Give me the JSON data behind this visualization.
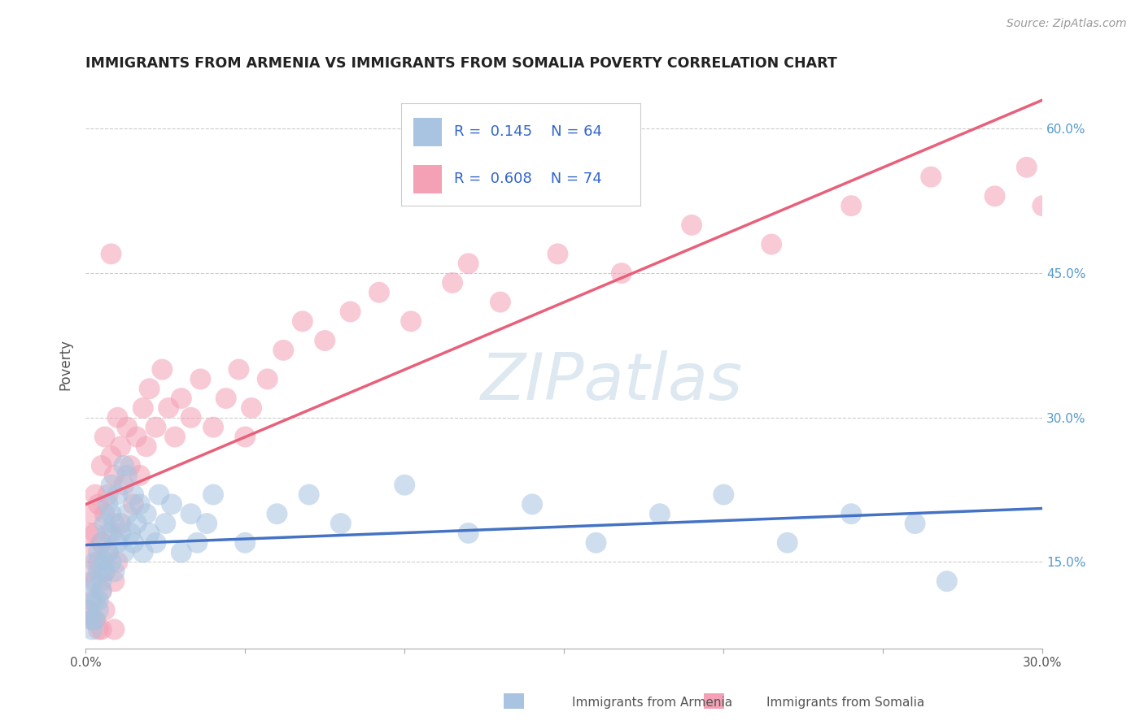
{
  "title": "IMMIGRANTS FROM ARMENIA VS IMMIGRANTS FROM SOMALIA POVERTY CORRELATION CHART",
  "source": "Source: ZipAtlas.com",
  "ylabel": "Poverty",
  "xlim": [
    0.0,
    0.3
  ],
  "ylim": [
    0.06,
    0.65
  ],
  "xticks": [
    0.0,
    0.05,
    0.1,
    0.15,
    0.2,
    0.25,
    0.3
  ],
  "xtick_labels": [
    "0.0%",
    "",
    "",
    "",
    "",
    "",
    "30.0%"
  ],
  "yticks": [
    0.15,
    0.3,
    0.45,
    0.6
  ],
  "ytick_labels": [
    "15.0%",
    "30.0%",
    "45.0%",
    "60.0%"
  ],
  "R_armenia": 0.145,
  "N_armenia": 64,
  "R_somalia": 0.608,
  "N_somalia": 74,
  "armenia_color": "#a8c4e0",
  "somalia_color": "#f4a0b5",
  "armenia_line_color": "#4472c4",
  "somalia_line_color": "#e8607a",
  "watermark": "ZIPatlas",
  "watermark_color": "#dde8f0",
  "background_color": "#ffffff",
  "grid_color": "#cccccc",
  "title_color": "#222222",
  "title_fontsize": 12.5,
  "legend_text_color": "#3366cc",
  "armenia_scatter_x": [
    0.001,
    0.001,
    0.002,
    0.002,
    0.002,
    0.003,
    0.003,
    0.003,
    0.004,
    0.004,
    0.004,
    0.004,
    0.005,
    0.005,
    0.005,
    0.006,
    0.006,
    0.006,
    0.007,
    0.007,
    0.007,
    0.008,
    0.008,
    0.008,
    0.009,
    0.009,
    0.01,
    0.01,
    0.011,
    0.012,
    0.012,
    0.013,
    0.013,
    0.014,
    0.015,
    0.015,
    0.016,
    0.017,
    0.018,
    0.019,
    0.02,
    0.022,
    0.023,
    0.025,
    0.027,
    0.03,
    0.033,
    0.035,
    0.038,
    0.04,
    0.05,
    0.06,
    0.07,
    0.08,
    0.1,
    0.12,
    0.14,
    0.16,
    0.18,
    0.2,
    0.22,
    0.24,
    0.26,
    0.27
  ],
  "armenia_scatter_y": [
    0.12,
    0.1,
    0.08,
    0.13,
    0.09,
    0.11,
    0.15,
    0.09,
    0.14,
    0.11,
    0.16,
    0.1,
    0.13,
    0.17,
    0.12,
    0.15,
    0.19,
    0.14,
    0.18,
    0.21,
    0.16,
    0.2,
    0.15,
    0.23,
    0.19,
    0.14,
    0.22,
    0.17,
    0.18,
    0.25,
    0.16,
    0.2,
    0.24,
    0.18,
    0.22,
    0.17,
    0.19,
    0.21,
    0.16,
    0.2,
    0.18,
    0.17,
    0.22,
    0.19,
    0.21,
    0.16,
    0.2,
    0.17,
    0.19,
    0.22,
    0.17,
    0.2,
    0.22,
    0.19,
    0.23,
    0.18,
    0.21,
    0.17,
    0.2,
    0.22,
    0.17,
    0.2,
    0.19,
    0.13
  ],
  "somalia_scatter_x": [
    0.001,
    0.001,
    0.001,
    0.002,
    0.002,
    0.002,
    0.003,
    0.003,
    0.003,
    0.004,
    0.004,
    0.005,
    0.005,
    0.005,
    0.006,
    0.006,
    0.006,
    0.007,
    0.007,
    0.008,
    0.008,
    0.009,
    0.009,
    0.01,
    0.01,
    0.011,
    0.011,
    0.012,
    0.013,
    0.014,
    0.015,
    0.016,
    0.017,
    0.018,
    0.019,
    0.02,
    0.022,
    0.024,
    0.026,
    0.028,
    0.03,
    0.033,
    0.036,
    0.04,
    0.044,
    0.048,
    0.052,
    0.057,
    0.062,
    0.068,
    0.075,
    0.083,
    0.092,
    0.102,
    0.115,
    0.13,
    0.148,
    0.168,
    0.19,
    0.215,
    0.24,
    0.265,
    0.285,
    0.295,
    0.3,
    0.008,
    0.05,
    0.12,
    0.005,
    0.003,
    0.004,
    0.006,
    0.002,
    0.009
  ],
  "somalia_scatter_y": [
    0.1,
    0.14,
    0.18,
    0.11,
    0.16,
    0.2,
    0.13,
    0.18,
    0.22,
    0.15,
    0.21,
    0.12,
    0.17,
    0.25,
    0.14,
    0.2,
    0.28,
    0.16,
    0.22,
    0.18,
    0.26,
    0.13,
    0.24,
    0.15,
    0.3,
    0.19,
    0.27,
    0.23,
    0.29,
    0.25,
    0.21,
    0.28,
    0.24,
    0.31,
    0.27,
    0.33,
    0.29,
    0.35,
    0.31,
    0.28,
    0.32,
    0.3,
    0.34,
    0.29,
    0.32,
    0.35,
    0.31,
    0.34,
    0.37,
    0.4,
    0.38,
    0.41,
    0.43,
    0.4,
    0.44,
    0.42,
    0.47,
    0.45,
    0.5,
    0.48,
    0.52,
    0.55,
    0.53,
    0.56,
    0.52,
    0.47,
    0.28,
    0.46,
    0.08,
    0.09,
    0.08,
    0.1,
    0.09,
    0.08
  ]
}
